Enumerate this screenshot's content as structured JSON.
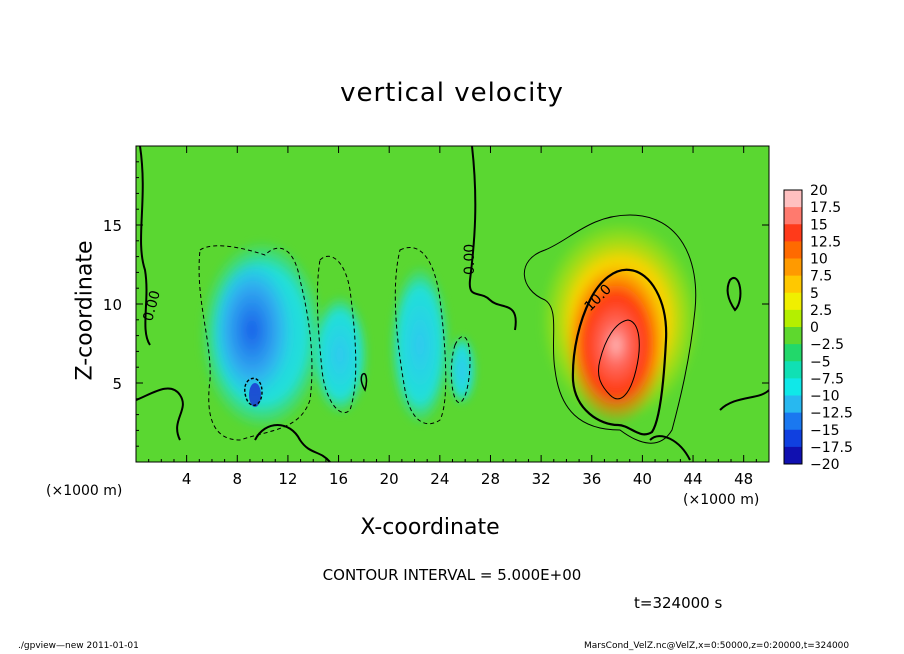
{
  "chart_data": {
    "type": "heatmap",
    "title": "vertical velocity",
    "xlabel": "X-coordinate",
    "ylabel": "Z-coordinate",
    "x_unit": "(×1000 m)",
    "x_ticks": [
      4,
      8,
      12,
      16,
      20,
      24,
      28,
      32,
      36,
      40,
      44,
      48
    ],
    "y_ticks": [
      5,
      10,
      15
    ],
    "xlim": [
      0,
      50
    ],
    "ylim": [
      0,
      20
    ],
    "contour_labels": [
      "0.00",
      "0.00",
      "10.0"
    ],
    "colorbar": {
      "labels": [
        "20",
        "17.5",
        "15",
        "12.5",
        "10",
        "7.5",
        "5",
        "2.5",
        "0",
        "−2.5",
        "−5",
        "−7.5",
        "−10",
        "−12.5",
        "−15",
        "−17.5",
        "−20"
      ],
      "colors": [
        "#ffc0c0",
        "#ff7a6e",
        "#ff3a1a",
        "#ff6a00",
        "#ff9a00",
        "#ffc800",
        "#f0ef00",
        "#b4ef00",
        "#5ed82e",
        "#22d86a",
        "#10e0b4",
        "#10e8e8",
        "#28b8f0",
        "#1a78f0",
        "#1040e0",
        "#1010b0",
        "#6010b0"
      ]
    },
    "features": [
      {
        "name": "updraft",
        "x_center": 38,
        "z_center": 6.5,
        "peak": 20
      },
      {
        "name": "downdraft",
        "x_center": 10,
        "z_center": 5,
        "peak": -12.5
      }
    ],
    "grid": false,
    "legend_placement": "right"
  },
  "annotations": {
    "contour_interval": "CONTOUR INTERVAL = 5.000E+00",
    "time": "t=324000  s",
    "footer_left": "./gpview—new  2011-01-01",
    "footer_right": "MarsCond_VelZ.nc@VelZ,x=0:50000,z=0:20000,t=324000"
  }
}
